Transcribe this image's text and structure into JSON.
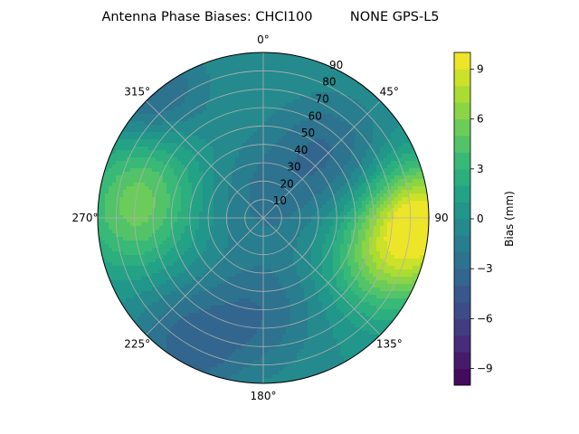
{
  "chart_data": {
    "type": "heatmap",
    "projection": "polar",
    "title": "Antenna Phase Biases: CHCI100         NONE GPS-L5",
    "angular_axis": {
      "zero_location": "top",
      "direction": "clockwise",
      "tick_labels": [
        "0°",
        "45°",
        "90",
        "135°",
        "180°",
        "225°",
        "270°",
        "315°"
      ]
    },
    "radial_axis": {
      "quantity": "zenith angle",
      "range": [
        0,
        90
      ],
      "tick_labels": [
        "10",
        "20",
        "30",
        "40",
        "50",
        "60",
        "70",
        "80",
        "90"
      ]
    },
    "grid": true,
    "colorbar": {
      "label": "Bias (mm)",
      "range": [
        -10,
        10
      ],
      "tick_labels": [
        "−9",
        "−6",
        "−3",
        "0",
        "3",
        "6",
        "9"
      ],
      "levels": 20,
      "colormap": "viridis"
    },
    "field_description": {
      "background_bias_mm": 0,
      "features": [
        {
          "azimuth_deg": 90,
          "zenith_deg": 88,
          "bias_mm": 9
        },
        {
          "azimuth_deg": 110,
          "zenith_deg": 70,
          "bias_mm": 5
        },
        {
          "azimuth_deg": 270,
          "zenith_deg": 70,
          "bias_mm": 4.5
        },
        {
          "azimuth_deg": 300,
          "zenith_deg": 72,
          "bias_mm": 3.5
        },
        {
          "azimuth_deg": 45,
          "zenith_deg": 50,
          "bias_mm": -3
        },
        {
          "azimuth_deg": 315,
          "zenith_deg": 88,
          "bias_mm": -4.5
        },
        {
          "azimuth_deg": 210,
          "zenith_deg": 80,
          "bias_mm": -3.5
        },
        {
          "azimuth_deg": 180,
          "zenith_deg": 50,
          "bias_mm": -2.5
        },
        {
          "azimuth_deg": 0,
          "zenith_deg": 10,
          "bias_mm": -2
        }
      ]
    }
  }
}
